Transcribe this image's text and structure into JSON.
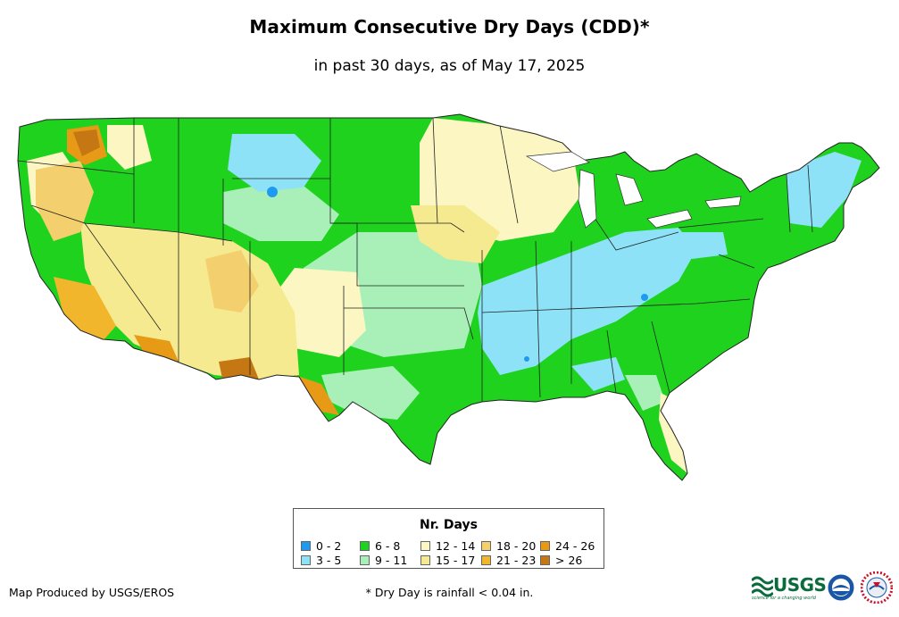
{
  "header": {
    "title": "Maximum Consecutive Dry Days (CDD)*",
    "subtitle": "in past 30 days, as of May 17, 2025"
  },
  "legend": {
    "title": "Nr. Days",
    "items": [
      {
        "label": "0 - 2",
        "color": "#1e9bf0"
      },
      {
        "label": "3 - 5",
        "color": "#8ee2f8"
      },
      {
        "label": "6 - 8",
        "color": "#1ed21e"
      },
      {
        "label": "9 - 11",
        "color": "#a8f0b8"
      },
      {
        "label": "12 - 14",
        "color": "#fbf6c2"
      },
      {
        "label": "15 - 17",
        "color": "#f6ea90"
      },
      {
        "label": "18 - 20",
        "color": "#f3cf6e"
      },
      {
        "label": "21 - 23",
        "color": "#f2b62c"
      },
      {
        "label": "24 - 26",
        "color": "#e79a16"
      },
      {
        "label": "> 26",
        "color": "#c47712"
      }
    ]
  },
  "footer": {
    "credit": "Map Produced by USGS/EROS",
    "footnote": "* Dry Day is rainfall < 0.04 in.",
    "logos": {
      "usgs": "USGS",
      "usgs_tagline": "science for a changing world"
    }
  },
  "map": {
    "region": "Contiguous United States",
    "icons": [
      "usgs-logo",
      "noaa-logo",
      "nws-logo"
    ]
  }
}
